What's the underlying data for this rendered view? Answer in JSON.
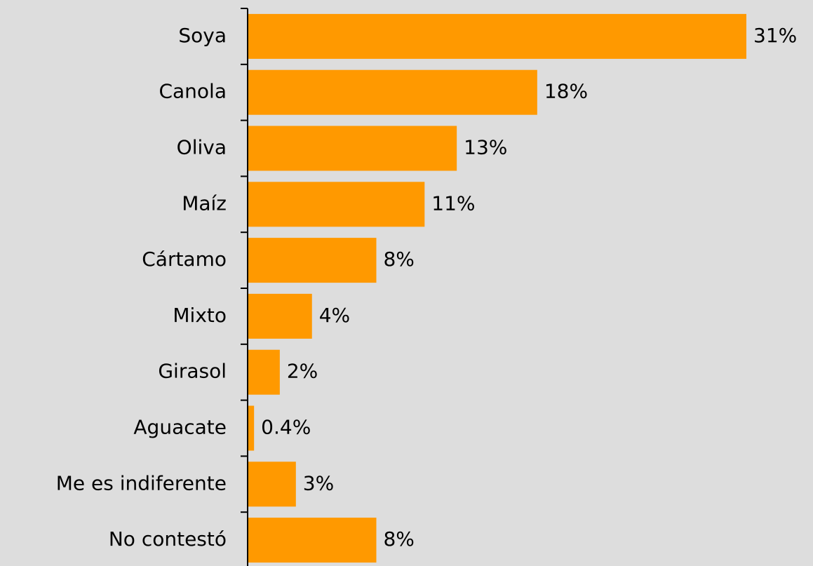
{
  "chart_data": {
    "type": "bar",
    "orientation": "horizontal",
    "categories": [
      "Soya",
      "Canola",
      "Oliva",
      "Maíz",
      "Cártamo",
      "Mixto",
      "Girasol",
      "Aguacate",
      "Me es indiferente",
      "No contestó"
    ],
    "values": [
      31,
      18,
      13,
      11,
      8,
      4,
      2,
      0.4,
      3,
      8
    ],
    "value_labels": [
      "31%",
      "18%",
      "13%",
      "11%",
      "8%",
      "4%",
      "2%",
      "0.4%",
      "3%",
      "8%"
    ],
    "color": "#ff9900"
  }
}
